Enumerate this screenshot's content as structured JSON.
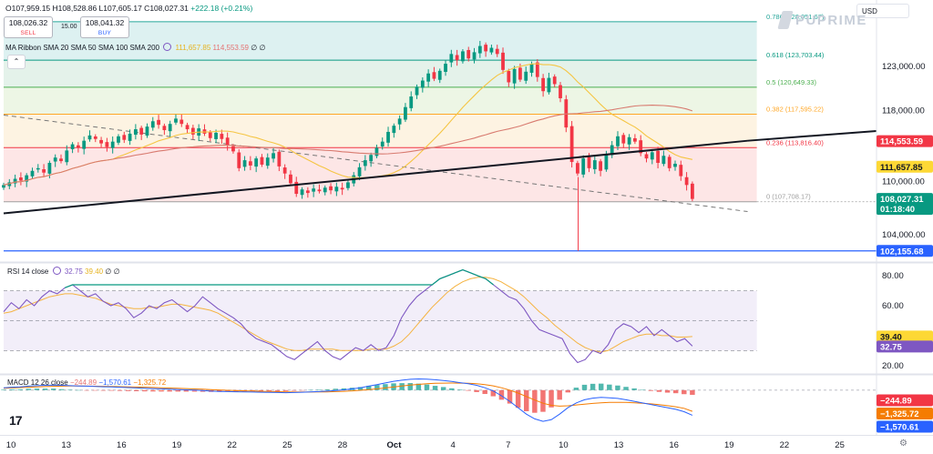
{
  "header": {
    "ohlc_text": "O107,959.15 H108,528.86 L107,605.17 C108,027.31",
    "change_text": "+222.18 (+0.21%)",
    "sell_price": "108,026.32",
    "sell_label": "SELL",
    "buy_price": "108,041.32",
    "buy_label": "BUY",
    "spread": "15.00",
    "currency": "USD",
    "brand": "PUPRIME",
    "collapse_icon": "chevron-up-icon"
  },
  "ma_legend": {
    "name": "MA Ribbon SMA 20 SMA 50 SMA 100 SMA 200",
    "v1": "111,657.85",
    "v2": "114,553.59",
    "v3": "∅",
    "v4": "∅"
  },
  "rsi_legend": {
    "name": "RSI 14 close",
    "v1": "32.75",
    "v2": "39.40",
    "v3": "∅",
    "v4": "∅"
  },
  "macd_legend": {
    "name": "MACD 12 26 close",
    "v1": "−244.89",
    "v2": "−1,570.61",
    "v3": "−1,325.72"
  },
  "colors": {
    "up": "#089981",
    "down": "#f23645",
    "sma20": "#f5c542",
    "sma50": "#d87a6f",
    "trendline": "#131722",
    "support_line": "#2962ff",
    "rsi": "#7e57c2",
    "rsi_ma": "#f5b340",
    "macd": "#2962ff",
    "signal": "#f57c00"
  },
  "chart_data": [
    {
      "type": "candlestick",
      "pane": "price",
      "ylim": [
        101000,
        130500
      ],
      "y_ticks": [
        {
          "value": 104000,
          "label": "104,000.00"
        },
        {
          "value": 110000,
          "label": "110,000.00"
        },
        {
          "value": 118000,
          "label": "118,000.00"
        },
        {
          "value": 123000,
          "label": "123,000.00"
        }
      ],
      "x_range": [
        9.6,
        26
      ],
      "x_ticks": [
        {
          "x": 10,
          "label": "10"
        },
        {
          "x": 13,
          "label": "13"
        },
        {
          "x": 16,
          "label": "16"
        },
        {
          "x": 19,
          "label": "19"
        },
        {
          "x": 22,
          "label": "22"
        },
        {
          "x": 25,
          "label": "25"
        },
        {
          "x": 28,
          "label": "28"
        },
        {
          "x": 30.8,
          "label": "Oct"
        },
        {
          "x": 34,
          "label": "4"
        },
        {
          "x": 37,
          "label": "7"
        },
        {
          "x": 40,
          "label": "10"
        },
        {
          "x": 43,
          "label": "13"
        },
        {
          "x": 46,
          "label": "16"
        },
        {
          "x": 49,
          "label": "19"
        },
        {
          "x": 52,
          "label": "22"
        },
        {
          "x": 55,
          "label": "25"
        }
      ],
      "candles_close": [
        109600,
        109900,
        110300,
        110100,
        110700,
        111200,
        111500,
        111000,
        112100,
        112700,
        112300,
        113500,
        114200,
        113800,
        114600,
        115200,
        114800,
        114300,
        113900,
        114500,
        115100,
        114700,
        115400,
        115900,
        115300,
        116200,
        116800,
        116400,
        115800,
        116500,
        117100,
        116500,
        115900,
        115300,
        116000,
        115400,
        114900,
        115500,
        114800,
        114100,
        113400,
        111500,
        112400,
        111800,
        112600,
        111900,
        112700,
        113200,
        111700,
        110900,
        109800,
        108600,
        109100,
        108700,
        109200,
        108900,
        109300,
        109000,
        109400,
        109100,
        109900,
        110700,
        111600,
        112400,
        113000,
        113800,
        114500,
        115600,
        116300,
        117100,
        118400,
        119600,
        120700,
        121400,
        122200,
        121600,
        122500,
        123300,
        124400,
        123700,
        124700,
        123900,
        124600,
        125300,
        124700,
        125100,
        124400,
        122600,
        121200,
        122700,
        121500,
        122400,
        123300,
        121800,
        120200,
        121700,
        121000,
        119400,
        116100,
        112200,
        110900,
        112600,
        111500,
        112400,
        111200,
        113100,
        114100,
        115100,
        114300,
        115000,
        114500,
        113200,
        112600,
        113300,
        112100,
        112900,
        111500,
        112000,
        110600,
        109600,
        108027
      ],
      "x_first": 9.6,
      "x_last": 47.0,
      "sma_fast_label": "SMA 20",
      "sma_slow_label": "SMA 50",
      "fib_levels": [
        {
          "ratio": "0.786",
          "value": 128051.67,
          "label": "0.786 (128,051.67)",
          "fill": "#d7efef",
          "stroke": "#26a69a"
        },
        {
          "ratio": "0.618",
          "value": 123703.44,
          "label": "0.618 (123,703.44)",
          "fill": "#dff0e6",
          "stroke": "#089981"
        },
        {
          "ratio": "0.5",
          "value": 120649.33,
          "label": "0.5 (120,649.33)",
          "fill": "#eaf5e1",
          "stroke": "#4caf50"
        },
        {
          "ratio": "0.382",
          "value": 117595.22,
          "label": "0.382 (117,595.22)",
          "fill": "#fdf1dd",
          "stroke": "#ffa726"
        },
        {
          "ratio": "0.236",
          "value": 113816.4,
          "label": "0.236 (113,816.40)",
          "fill": "#fde2e2",
          "stroke": "#f23645"
        },
        {
          "ratio": "0",
          "value": 107708.17,
          "label": "0 (107,708.17)",
          "fill": "none",
          "stroke": "#9e9e9e"
        }
      ],
      "trendline": [
        [
          9.6,
          106400
        ],
        [
          50,
          114600
        ]
      ],
      "dashed_line": [
        [
          9.6,
          117500
        ],
        [
          50,
          106600
        ]
      ],
      "support_value": 102155.68,
      "price_labels": [
        {
          "value": 114553.59,
          "text": "114,553.59",
          "bg": "#f23645",
          "fg": "#ffffff"
        },
        {
          "value": 111657.85,
          "text": "111,657.85",
          "bg": "#fdd835",
          "fg": "#131722"
        },
        {
          "value": 108027.31,
          "text": "108,027.31",
          "sub": "01:18:40",
          "bg": "#089981",
          "fg": "#ffffff"
        },
        {
          "value": 102155.68,
          "text": "102,155.68",
          "bg": "#2962ff",
          "fg": "#ffffff"
        }
      ]
    },
    {
      "type": "line",
      "pane": "rsi",
      "ylim": [
        15,
        88
      ],
      "y_ticks": [
        {
          "value": 20,
          "label": "20.00"
        },
        {
          "value": 40,
          "label": "40.00"
        },
        {
          "value": 60,
          "label": "60.00"
        },
        {
          "value": 80,
          "label": "80.00"
        }
      ],
      "bands": [
        70,
        50,
        30
      ],
      "rsi": [
        56,
        62,
        58,
        64,
        60,
        66,
        70,
        68,
        72,
        74,
        70,
        66,
        68,
        63,
        60,
        62,
        58,
        52,
        55,
        60,
        58,
        62,
        64,
        60,
        56,
        60,
        66,
        62,
        58,
        55,
        52,
        48,
        42,
        38,
        36,
        34,
        30,
        26,
        24,
        28,
        32,
        36,
        30,
        26,
        24,
        28,
        32,
        30,
        34,
        30,
        32,
        40,
        52,
        60,
        66,
        70,
        74,
        78,
        80,
        82,
        84,
        82,
        80,
        78,
        74,
        70,
        66,
        64,
        58,
        50,
        44,
        42,
        40,
        38,
        28,
        22,
        24,
        30,
        28,
        34,
        44,
        48,
        46,
        42,
        46,
        40,
        44,
        40,
        36,
        38,
        33
      ],
      "rsi_ma": [
        55,
        56,
        58,
        60,
        62,
        64,
        66,
        67,
        68,
        68,
        67,
        66,
        65,
        63,
        61,
        60,
        59,
        58,
        58,
        59,
        59,
        60,
        61,
        61,
        60,
        59,
        58,
        57,
        55,
        52,
        49,
        46,
        43,
        40,
        37,
        35,
        33,
        31,
        30,
        30,
        31,
        31,
        31,
        31,
        30,
        30,
        30,
        30,
        31,
        31,
        31,
        33,
        36,
        41,
        47,
        53,
        59,
        64,
        69,
        73,
        76,
        78,
        79,
        79,
        78,
        76,
        73,
        70,
        66,
        61,
        56,
        52,
        47,
        43,
        39,
        35,
        32,
        30,
        29,
        30,
        33,
        36,
        38,
        40,
        41,
        41,
        40,
        40,
        39,
        39,
        39.4
      ],
      "rsi_value": 32.75,
      "rsi_ma_value": 39.4,
      "price_labels": [
        {
          "value": 39.4,
          "text": "39.40",
          "bg": "#fdd835",
          "fg": "#131722"
        },
        {
          "value": 32.75,
          "text": "32.75",
          "bg": "#7e57c2",
          "fg": "#ffffff"
        }
      ]
    },
    {
      "type": "line",
      "pane": "macd",
      "ylim": [
        -2800,
        900
      ],
      "macd": [
        150,
        180,
        200,
        250,
        280,
        300,
        320,
        300,
        280,
        260,
        250,
        230,
        210,
        200,
        180,
        160,
        140,
        120,
        100,
        80,
        60,
        40,
        20,
        0,
        -30,
        -60,
        -80,
        -90,
        -100,
        -110,
        -120,
        -130,
        -140,
        -150,
        -160,
        -150,
        -130,
        -110,
        -90,
        -60,
        -20,
        20,
        80,
        150,
        250,
        350,
        450,
        550,
        620,
        680,
        700,
        690,
        650,
        600,
        540,
        470,
        400,
        300,
        150,
        -50,
        -350,
        -700,
        -1100,
        -1500,
        -1800,
        -1950,
        -1850,
        -1500,
        -1100,
        -800,
        -600,
        -500,
        -450,
        -480,
        -520,
        -600,
        -700,
        -800,
        -900,
        -1000,
        -1100,
        -1200,
        -1350,
        -1570
      ],
      "signal": [
        120,
        140,
        160,
        180,
        200,
        220,
        240,
        250,
        255,
        255,
        252,
        246,
        238,
        229,
        219,
        208,
        195,
        182,
        167,
        150,
        133,
        115,
        96,
        77,
        55,
        32,
        10,
        -10,
        -28,
        -44,
        -59,
        -73,
        -86,
        -98,
        -110,
        -118,
        -121,
        -120,
        -115,
        -106,
        -92,
        -72,
        -45,
        -12,
        30,
        80,
        136,
        195,
        255,
        312,
        360,
        398,
        425,
        440,
        445,
        440,
        430,
        400,
        350,
        270,
        150,
        0,
        -180,
        -400,
        -620,
        -820,
        -950,
        -1000,
        -980,
        -930,
        -880,
        -830,
        -790,
        -770,
        -760,
        -770,
        -790,
        -820,
        -860,
        -910,
        -970,
        -1040,
        -1140,
        -1325
      ],
      "histogram_value": -244.89,
      "macd_value": -1570.61,
      "signal_value": -1325.72,
      "price_labels": [
        {
          "value": -244.89,
          "text": "−244.89",
          "bg": "#f23645",
          "fg": "#ffffff"
        },
        {
          "value": -1325.72,
          "text": "−1,325.72",
          "bg": "#f57c00",
          "fg": "#ffffff"
        },
        {
          "value": -1570.61,
          "text": "−1,570.61",
          "bg": "#2962ff",
          "fg": "#ffffff"
        }
      ]
    }
  ]
}
